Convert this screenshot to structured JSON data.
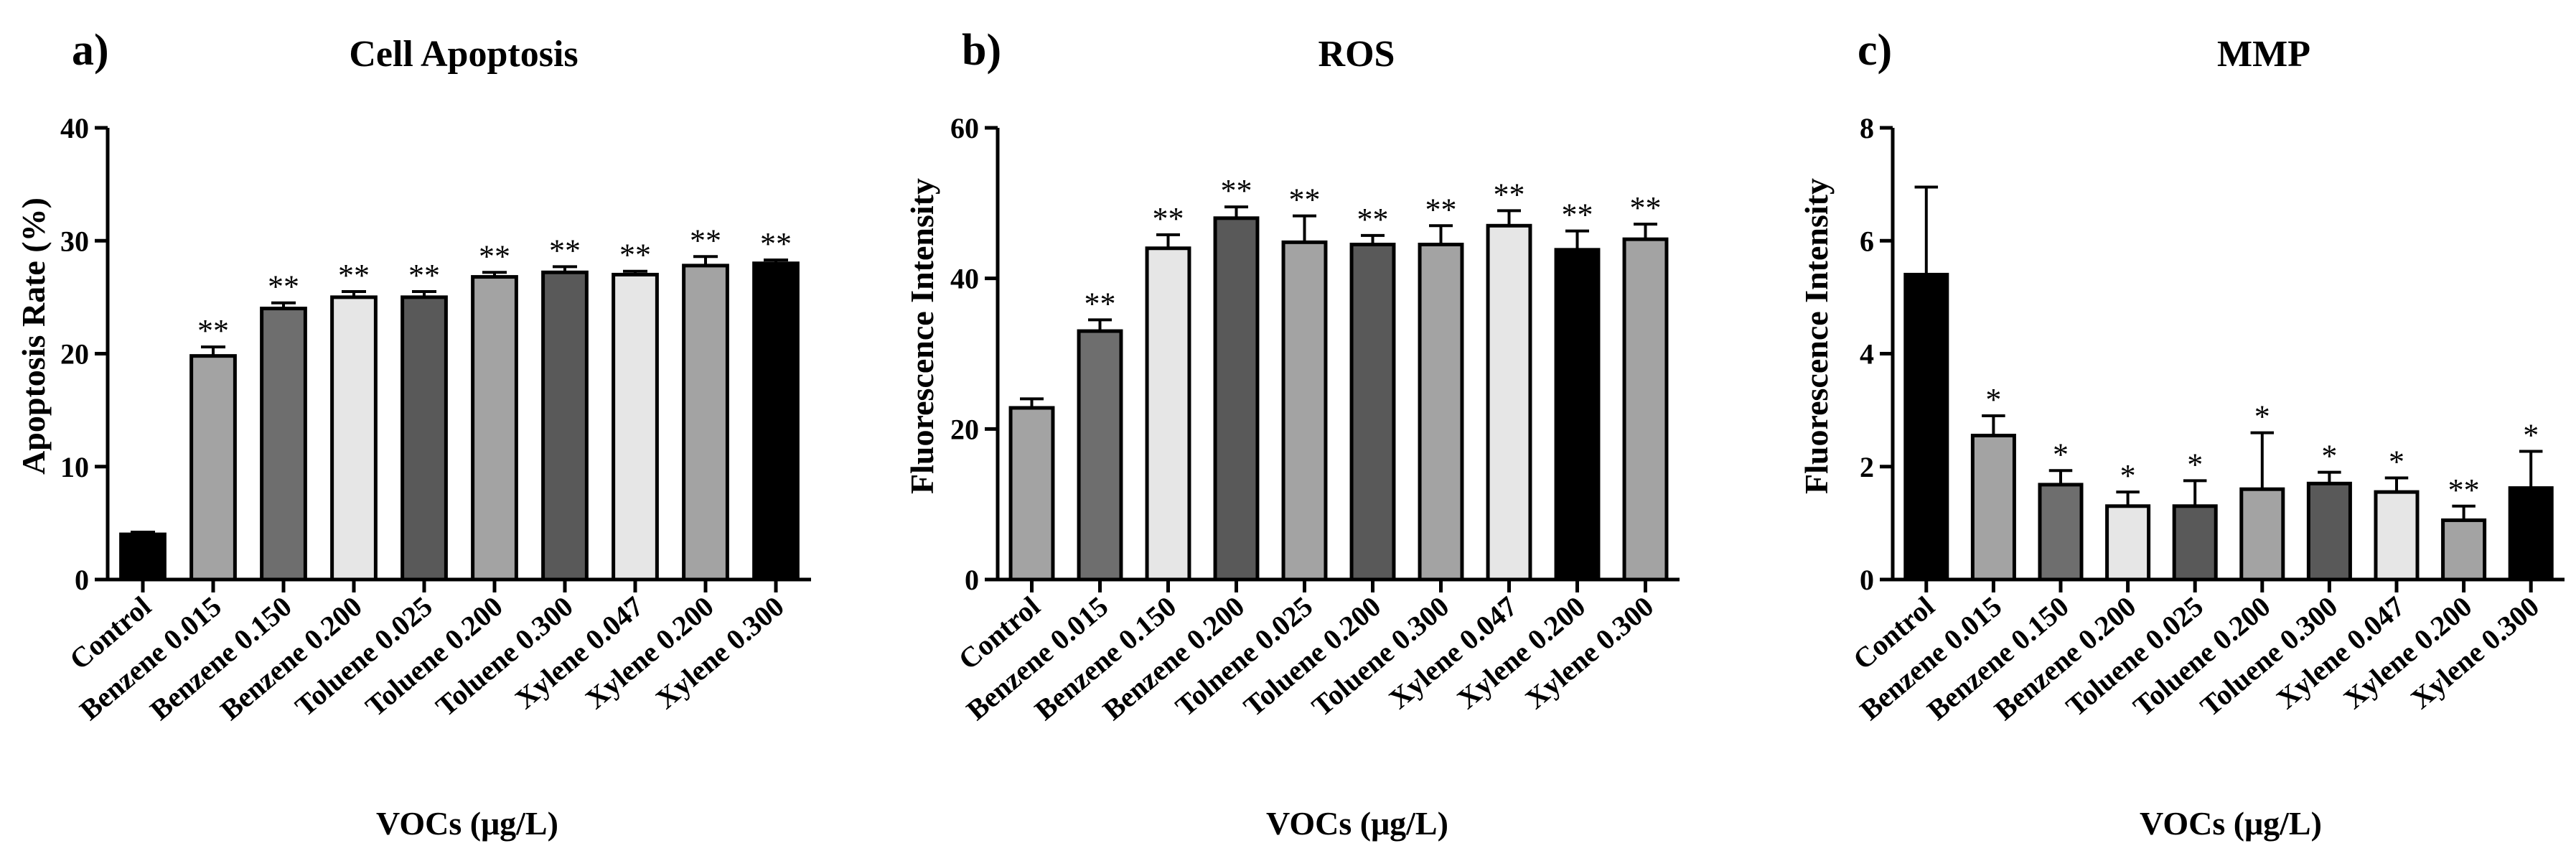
{
  "chart_data": [
    {
      "type": "bar",
      "panel": "a)",
      "title": "Cell Apoptosis",
      "xlabel": "VOCs (μg/L)",
      "ylabel": "Apoptosis Rate (%)",
      "ylim": [
        0,
        40
      ],
      "yticks": [
        0,
        10,
        20,
        30,
        40
      ],
      "categories": [
        "Control",
        "Benzene 0.015",
        "Benzene 0.150",
        "Benzene 0.200",
        "Toluene 0.025",
        "Toluene 0.200",
        "Toluene 0.300",
        "Xylene 0.047",
        "Xylene 0.200",
        "Xylene 0.300"
      ],
      "values": [
        4.0,
        19.8,
        24.0,
        25.0,
        25.0,
        26.8,
        27.2,
        27.0,
        27.8,
        28.0
      ],
      "errors": [
        0.2,
        0.8,
        0.5,
        0.5,
        0.5,
        0.4,
        0.5,
        0.3,
        0.8,
        0.3
      ],
      "significance": [
        "",
        "**",
        "**",
        "**",
        "**",
        "**",
        "**",
        "**",
        "**",
        "**"
      ],
      "colors": [
        "#000000",
        "#a3a3a3",
        "#6e6e6e",
        "#e6e6e6",
        "#595959",
        "#a3a3a3",
        "#595959",
        "#e6e6e6",
        "#a3a3a3",
        "#000000"
      ]
    },
    {
      "type": "bar",
      "panel": "b)",
      "title": "ROS",
      "xlabel": "VOCs (μg/L)",
      "ylabel": "Fluorescence Intensity",
      "ylim": [
        0,
        60
      ],
      "yticks": [
        0,
        20,
        40,
        60
      ],
      "categories": [
        "Control",
        "Benzene 0.015",
        "Benzene 0.150",
        "Benzene 0.200",
        "Tolnene 0.025",
        "Toluene 0.200",
        "Toluene 0.300",
        "Xylene 0.047",
        "Xylene 0.200",
        "Xylene 0.300"
      ],
      "values": [
        22.8,
        33.0,
        44.0,
        48.0,
        44.8,
        44.5,
        44.5,
        47.0,
        43.8,
        45.2
      ],
      "errors": [
        1.2,
        1.5,
        1.8,
        1.5,
        3.5,
        1.2,
        2.5,
        2.0,
        2.5,
        2.0
      ],
      "significance": [
        "",
        "**",
        "**",
        "**",
        "**",
        "**",
        "**",
        "**",
        "**",
        "**"
      ],
      "colors": [
        "#a3a3a3",
        "#6e6e6e",
        "#e6e6e6",
        "#595959",
        "#a3a3a3",
        "#595959",
        "#a3a3a3",
        "#e6e6e6",
        "#000000",
        "#a3a3a3"
      ]
    },
    {
      "type": "bar",
      "panel": "c)",
      "title": "MMP",
      "xlabel": "VOCs (μg/L)",
      "ylabel": "Fluorescence Intensity",
      "ylim": [
        0,
        8
      ],
      "yticks": [
        0,
        2,
        4,
        6,
        8
      ],
      "categories": [
        "Control",
        "Benzene 0.015",
        "Benzene 0.150",
        "Benzene 0.200",
        "Toluene 0.025",
        "Toluene 0.200",
        "Toluene 0.300",
        "Xylene 0.047",
        "Xylene 0.200",
        "Xylene 0.300"
      ],
      "values": [
        5.4,
        2.55,
        1.68,
        1.3,
        1.3,
        1.6,
        1.7,
        1.55,
        1.05,
        1.62
      ],
      "errors": [
        1.55,
        0.35,
        0.25,
        0.25,
        0.45,
        1.0,
        0.2,
        0.25,
        0.25,
        0.65
      ],
      "significance": [
        "",
        "*",
        "*",
        "*",
        "*",
        "*",
        "*",
        "*",
        "**",
        "*"
      ],
      "colors": [
        "#000000",
        "#a3a3a3",
        "#6e6e6e",
        "#e6e6e6",
        "#595959",
        "#a3a3a3",
        "#595959",
        "#e6e6e6",
        "#a3a3a3",
        "#000000"
      ]
    }
  ]
}
